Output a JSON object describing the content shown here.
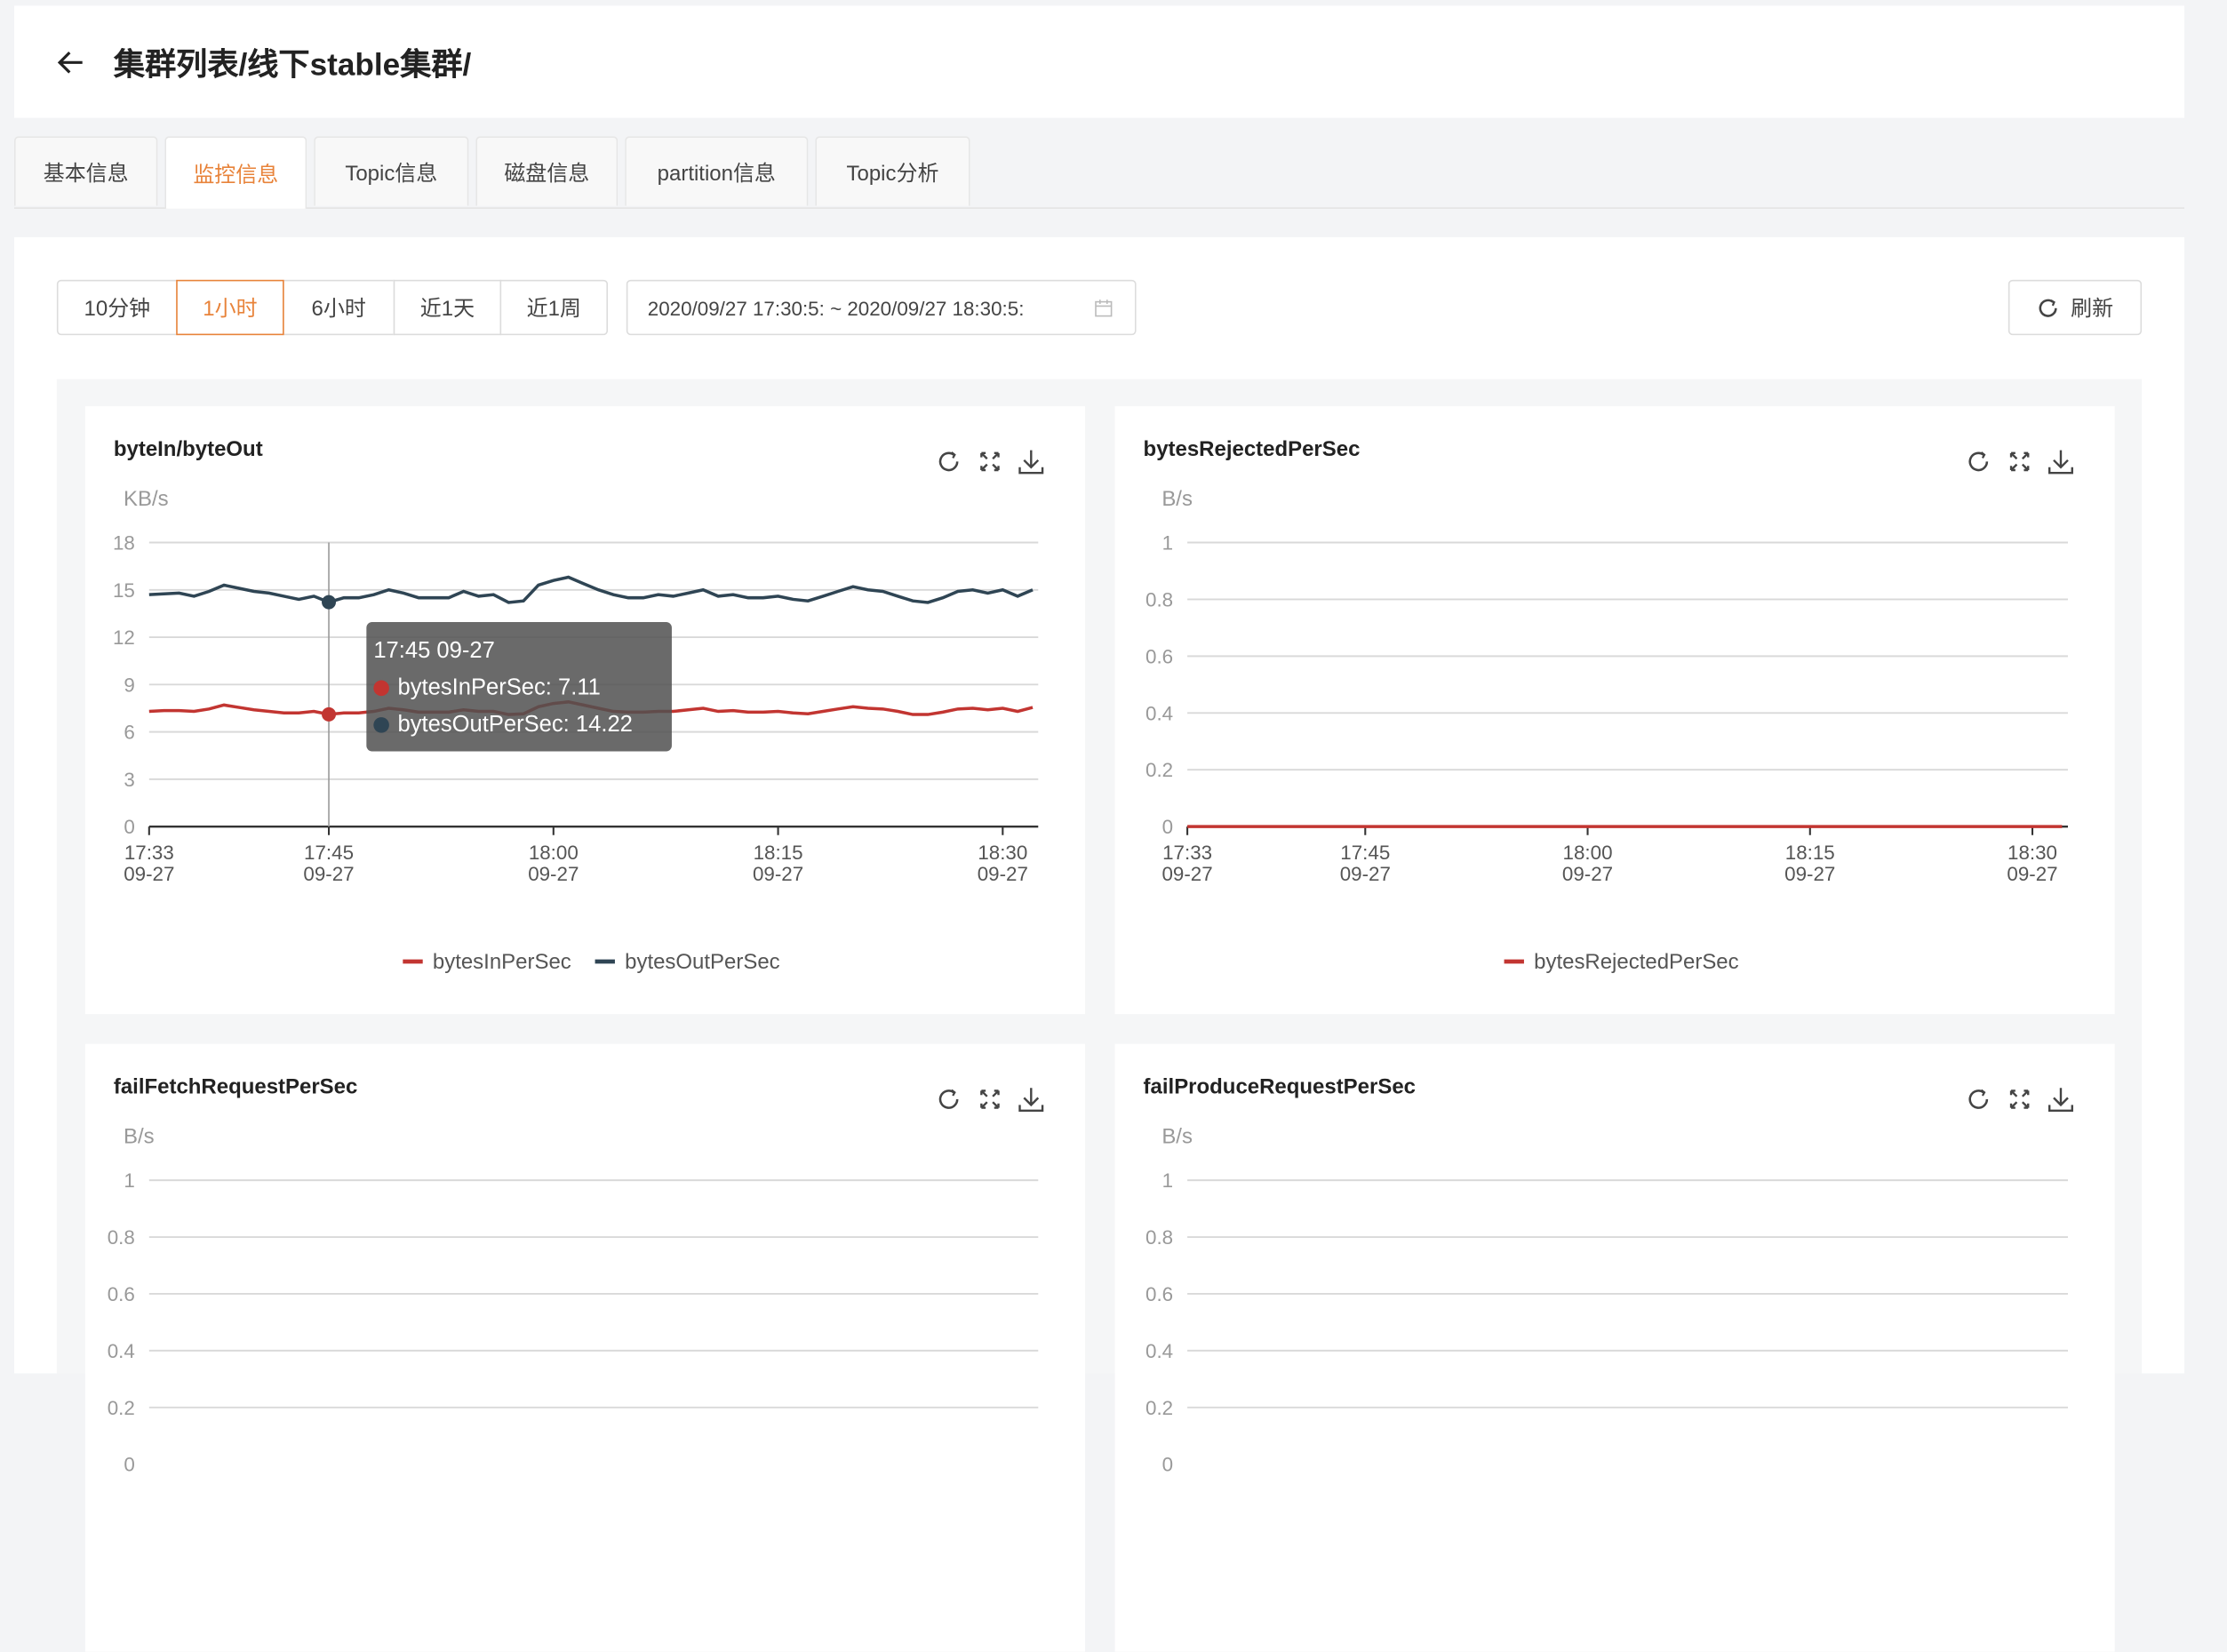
{
  "header": {
    "title": "集群列表/线下stable集群/",
    "back_icon": "arrow-left-icon"
  },
  "tabs": [
    {
      "label": "基本信息",
      "active": false
    },
    {
      "label": "监控信息",
      "active": true
    },
    {
      "label": "Topic信息",
      "active": false
    },
    {
      "label": "磁盘信息",
      "active": false
    },
    {
      "label": "partition信息",
      "active": false
    },
    {
      "label": "Topic分析",
      "active": false
    }
  ],
  "toolbar": {
    "ranges": [
      {
        "label": "10分钟",
        "active": false
      },
      {
        "label": "1小时",
        "active": true
      },
      {
        "label": "6小时",
        "active": false
      },
      {
        "label": "近1天",
        "active": false
      },
      {
        "label": "近1周",
        "active": false
      }
    ],
    "date_range": "2020/09/27 17:30:53 ~ 2020/09/27 18:30:53",
    "date_range_display": "2020/09/27 17:30:5: ~ 2020/09/27 18:30:5:",
    "refresh_label": "刷新"
  },
  "colors": {
    "accent": "#e8833a",
    "bytesIn": "#c23531",
    "bytesOut": "#2f4554"
  },
  "chart_tools": [
    "refresh-icon",
    "fullscreen-icon",
    "download-icon"
  ],
  "chart_data": [
    {
      "type": "line",
      "title": "byteIn/byteOut",
      "unit": "KB/s",
      "ylim": [
        0,
        18
      ],
      "yticks": [
        "0",
        "3",
        "6",
        "9",
        "12",
        "15",
        "18"
      ],
      "x_start": "17:33",
      "x_interval_minutes": 1,
      "xticks": [
        {
          "time": "17:33",
          "date": "09-27"
        },
        {
          "time": "17:45",
          "date": "09-27"
        },
        {
          "time": "18:00",
          "date": "09-27"
        },
        {
          "time": "18:15",
          "date": "09-27"
        },
        {
          "time": "18:30",
          "date": "09-27"
        }
      ],
      "series": [
        {
          "name": "bytesInPerSec",
          "color": "#c23531",
          "values": [
            7.3,
            7.35,
            7.35,
            7.3,
            7.45,
            7.7,
            7.55,
            7.4,
            7.3,
            7.2,
            7.2,
            7.3,
            7.11,
            7.2,
            7.2,
            7.3,
            7.5,
            7.4,
            7.25,
            7.25,
            7.25,
            7.4,
            7.3,
            7.3,
            7.1,
            7.15,
            7.6,
            7.8,
            7.9,
            7.7,
            7.5,
            7.3,
            7.25,
            7.25,
            7.3,
            7.3,
            7.4,
            7.5,
            7.3,
            7.35,
            7.25,
            7.25,
            7.3,
            7.2,
            7.15,
            7.3,
            7.45,
            7.6,
            7.5,
            7.45,
            7.3,
            7.1,
            7.1,
            7.25,
            7.45,
            7.5,
            7.4,
            7.5,
            7.3,
            7.55
          ]
        },
        {
          "name": "bytesOutPerSec",
          "color": "#2f4554",
          "values": [
            14.7,
            14.75,
            14.8,
            14.6,
            14.9,
            15.3,
            15.1,
            14.9,
            14.8,
            14.6,
            14.4,
            14.6,
            14.22,
            14.5,
            14.5,
            14.7,
            15.0,
            14.8,
            14.5,
            14.5,
            14.5,
            14.9,
            14.6,
            14.7,
            14.2,
            14.3,
            15.3,
            15.6,
            15.8,
            15.4,
            15.0,
            14.7,
            14.5,
            14.5,
            14.7,
            14.6,
            14.8,
            15.0,
            14.6,
            14.7,
            14.5,
            14.5,
            14.6,
            14.4,
            14.3,
            14.6,
            14.9,
            15.2,
            15.0,
            14.9,
            14.6,
            14.3,
            14.2,
            14.5,
            14.9,
            15.0,
            14.8,
            15.0,
            14.6,
            15.0
          ]
        }
      ],
      "tooltip": {
        "title": "17:45 09-27",
        "time": "17:45",
        "rows": [
          {
            "label": "bytesInPerSec: 7.11",
            "color": "#c23531"
          },
          {
            "label": "bytesOutPerSec: 14.22",
            "color": "#2f4554"
          }
        ]
      }
    },
    {
      "type": "line",
      "title": "bytesRejectedPerSec",
      "unit": "B/s",
      "ylim": [
        0,
        1
      ],
      "yticks": [
        "0",
        "0.2",
        "0.4",
        "0.6",
        "0.8",
        "1"
      ],
      "x_start": "17:33",
      "x_interval_minutes": 1,
      "xticks": [
        {
          "time": "17:33",
          "date": "09-27"
        },
        {
          "time": "17:45",
          "date": "09-27"
        },
        {
          "time": "18:00",
          "date": "09-27"
        },
        {
          "time": "18:15",
          "date": "09-27"
        },
        {
          "time": "18:30",
          "date": "09-27"
        }
      ],
      "series": [
        {
          "name": "bytesRejectedPerSec",
          "color": "#c23531",
          "values": [
            0,
            0,
            0,
            0,
            0,
            0,
            0,
            0,
            0,
            0,
            0,
            0,
            0,
            0,
            0,
            0,
            0,
            0,
            0,
            0,
            0,
            0,
            0,
            0,
            0,
            0,
            0,
            0,
            0,
            0,
            0,
            0,
            0,
            0,
            0,
            0,
            0,
            0,
            0,
            0,
            0,
            0,
            0,
            0,
            0,
            0,
            0,
            0,
            0,
            0,
            0,
            0,
            0,
            0,
            0,
            0,
            0,
            0,
            0,
            0
          ]
        }
      ]
    },
    {
      "type": "line",
      "title": "failFetchRequestPerSec",
      "unit": "B/s",
      "ylim": [
        0,
        1
      ],
      "yticks": [
        "0",
        "0.2",
        "0.4",
        "0.6",
        "0.8",
        "1"
      ],
      "series": []
    },
    {
      "type": "line",
      "title": "failProduceRequestPerSec",
      "unit": "B/s",
      "ylim": [
        0,
        1
      ],
      "yticks": [
        "0",
        "0.2",
        "0.4",
        "0.6",
        "0.8",
        "1"
      ],
      "series": []
    }
  ]
}
